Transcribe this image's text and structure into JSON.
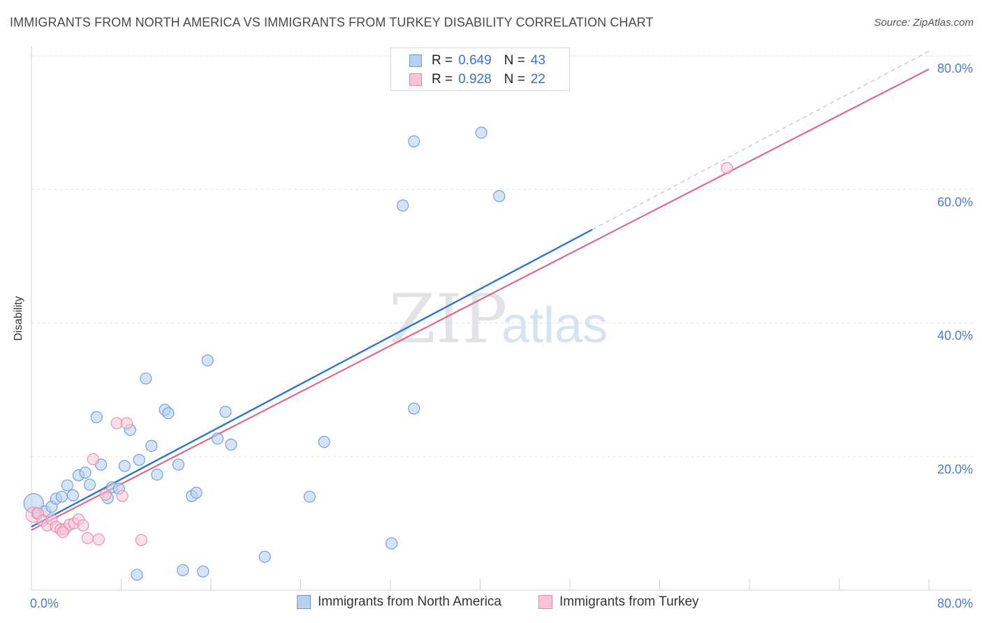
{
  "header": {
    "title": "IMMIGRANTS FROM NORTH AMERICA VS IMMIGRANTS FROM TURKEY DISABILITY CORRELATION CHART",
    "source": "Source: ZipAtlas.com"
  },
  "watermark": {
    "zip": "ZIP",
    "atlas": "atlas"
  },
  "colors": {
    "blue_fill": "#b8d0f0",
    "blue_stroke": "#6c9bd8",
    "blue_line": "#2f74cc",
    "pink_fill": "#f9c4d5",
    "pink_stroke": "#e88aa8",
    "pink_line": "#e0668f",
    "tick_text": "#4a7cc9",
    "grid": "#e3e3e3"
  },
  "legend": {
    "rows": [
      {
        "r_label": "R =",
        "r_value": "0.649",
        "n_label": "N =",
        "n_value": "43"
      },
      {
        "r_label": "R =",
        "r_value": "0.928",
        "n_label": "N =",
        "n_value": "22"
      }
    ]
  },
  "bottom_legend": {
    "items": [
      "Immigrants from North America",
      "Immigrants from Turkey"
    ]
  },
  "chart_data": {
    "type": "scatter",
    "title": "IMMIGRANTS FROM NORTH AMERICA VS IMMIGRANTS FROM TURKEY DISABILITY CORRELATION CHART",
    "xlabel": "",
    "ylabel": "Disability",
    "xlim": [
      0,
      0.8
    ],
    "ylim": [
      0,
      0.8
    ],
    "x_tick_labels": [
      "0.0%",
      "80.0%"
    ],
    "y_ticks": [
      0.2,
      0.4,
      0.6,
      0.8
    ],
    "y_tick_labels": [
      "20.0%",
      "40.0%",
      "60.0%",
      "80.0%"
    ],
    "grid": true,
    "legend_position": "top-center",
    "series": [
      {
        "name": "Immigrants from North America",
        "r": 0.649,
        "n": 43,
        "trend": {
          "x0": 0.0,
          "y0": 0.095,
          "x1": 0.5,
          "y1": 0.54,
          "dashed_to_x": 0.8,
          "dashed_to_y": 0.807
        },
        "points": [
          [
            0.002,
            0.13
          ],
          [
            0.005,
            0.115
          ],
          [
            0.012,
            0.118
          ],
          [
            0.018,
            0.125
          ],
          [
            0.022,
            0.137
          ],
          [
            0.027,
            0.14
          ],
          [
            0.032,
            0.157
          ],
          [
            0.037,
            0.142
          ],
          [
            0.042,
            0.172
          ],
          [
            0.048,
            0.176
          ],
          [
            0.052,
            0.158
          ],
          [
            0.058,
            0.259
          ],
          [
            0.062,
            0.188
          ],
          [
            0.068,
            0.138
          ],
          [
            0.072,
            0.154
          ],
          [
            0.078,
            0.152
          ],
          [
            0.083,
            0.186
          ],
          [
            0.088,
            0.24
          ],
          [
            0.096,
            0.195
          ],
          [
            0.102,
            0.317
          ],
          [
            0.107,
            0.216
          ],
          [
            0.112,
            0.173
          ],
          [
            0.119,
            0.27
          ],
          [
            0.122,
            0.265
          ],
          [
            0.131,
            0.188
          ],
          [
            0.143,
            0.141
          ],
          [
            0.147,
            0.146
          ],
          [
            0.157,
            0.344
          ],
          [
            0.166,
            0.227
          ],
          [
            0.173,
            0.267
          ],
          [
            0.178,
            0.218
          ],
          [
            0.248,
            0.14
          ],
          [
            0.261,
            0.222
          ],
          [
            0.321,
            0.07
          ],
          [
            0.331,
            0.576
          ],
          [
            0.341,
            0.672
          ],
          [
            0.341,
            0.272
          ],
          [
            0.401,
            0.685
          ],
          [
            0.417,
            0.59
          ],
          [
            0.094,
            0.023
          ],
          [
            0.135,
            0.03
          ],
          [
            0.153,
            0.028
          ],
          [
            0.208,
            0.05
          ]
        ]
      },
      {
        "name": "Immigrants from Turkey",
        "r": 0.928,
        "n": 22,
        "trend": {
          "x0": 0.0,
          "y0": 0.09,
          "x1": 0.8,
          "y1": 0.78
        },
        "points": [
          [
            0.002,
            0.113
          ],
          [
            0.006,
            0.115
          ],
          [
            0.01,
            0.104
          ],
          [
            0.014,
            0.097
          ],
          [
            0.018,
            0.106
          ],
          [
            0.022,
            0.095
          ],
          [
            0.026,
            0.091
          ],
          [
            0.03,
            0.092
          ],
          [
            0.034,
            0.098
          ],
          [
            0.038,
            0.1
          ],
          [
            0.042,
            0.106
          ],
          [
            0.046,
            0.097
          ],
          [
            0.05,
            0.078
          ],
          [
            0.055,
            0.196
          ],
          [
            0.06,
            0.076
          ],
          [
            0.066,
            0.143
          ],
          [
            0.076,
            0.25
          ],
          [
            0.081,
            0.141
          ],
          [
            0.085,
            0.25
          ],
          [
            0.098,
            0.075
          ],
          [
            0.62,
            0.632
          ],
          [
            0.028,
            0.087
          ]
        ]
      }
    ]
  }
}
